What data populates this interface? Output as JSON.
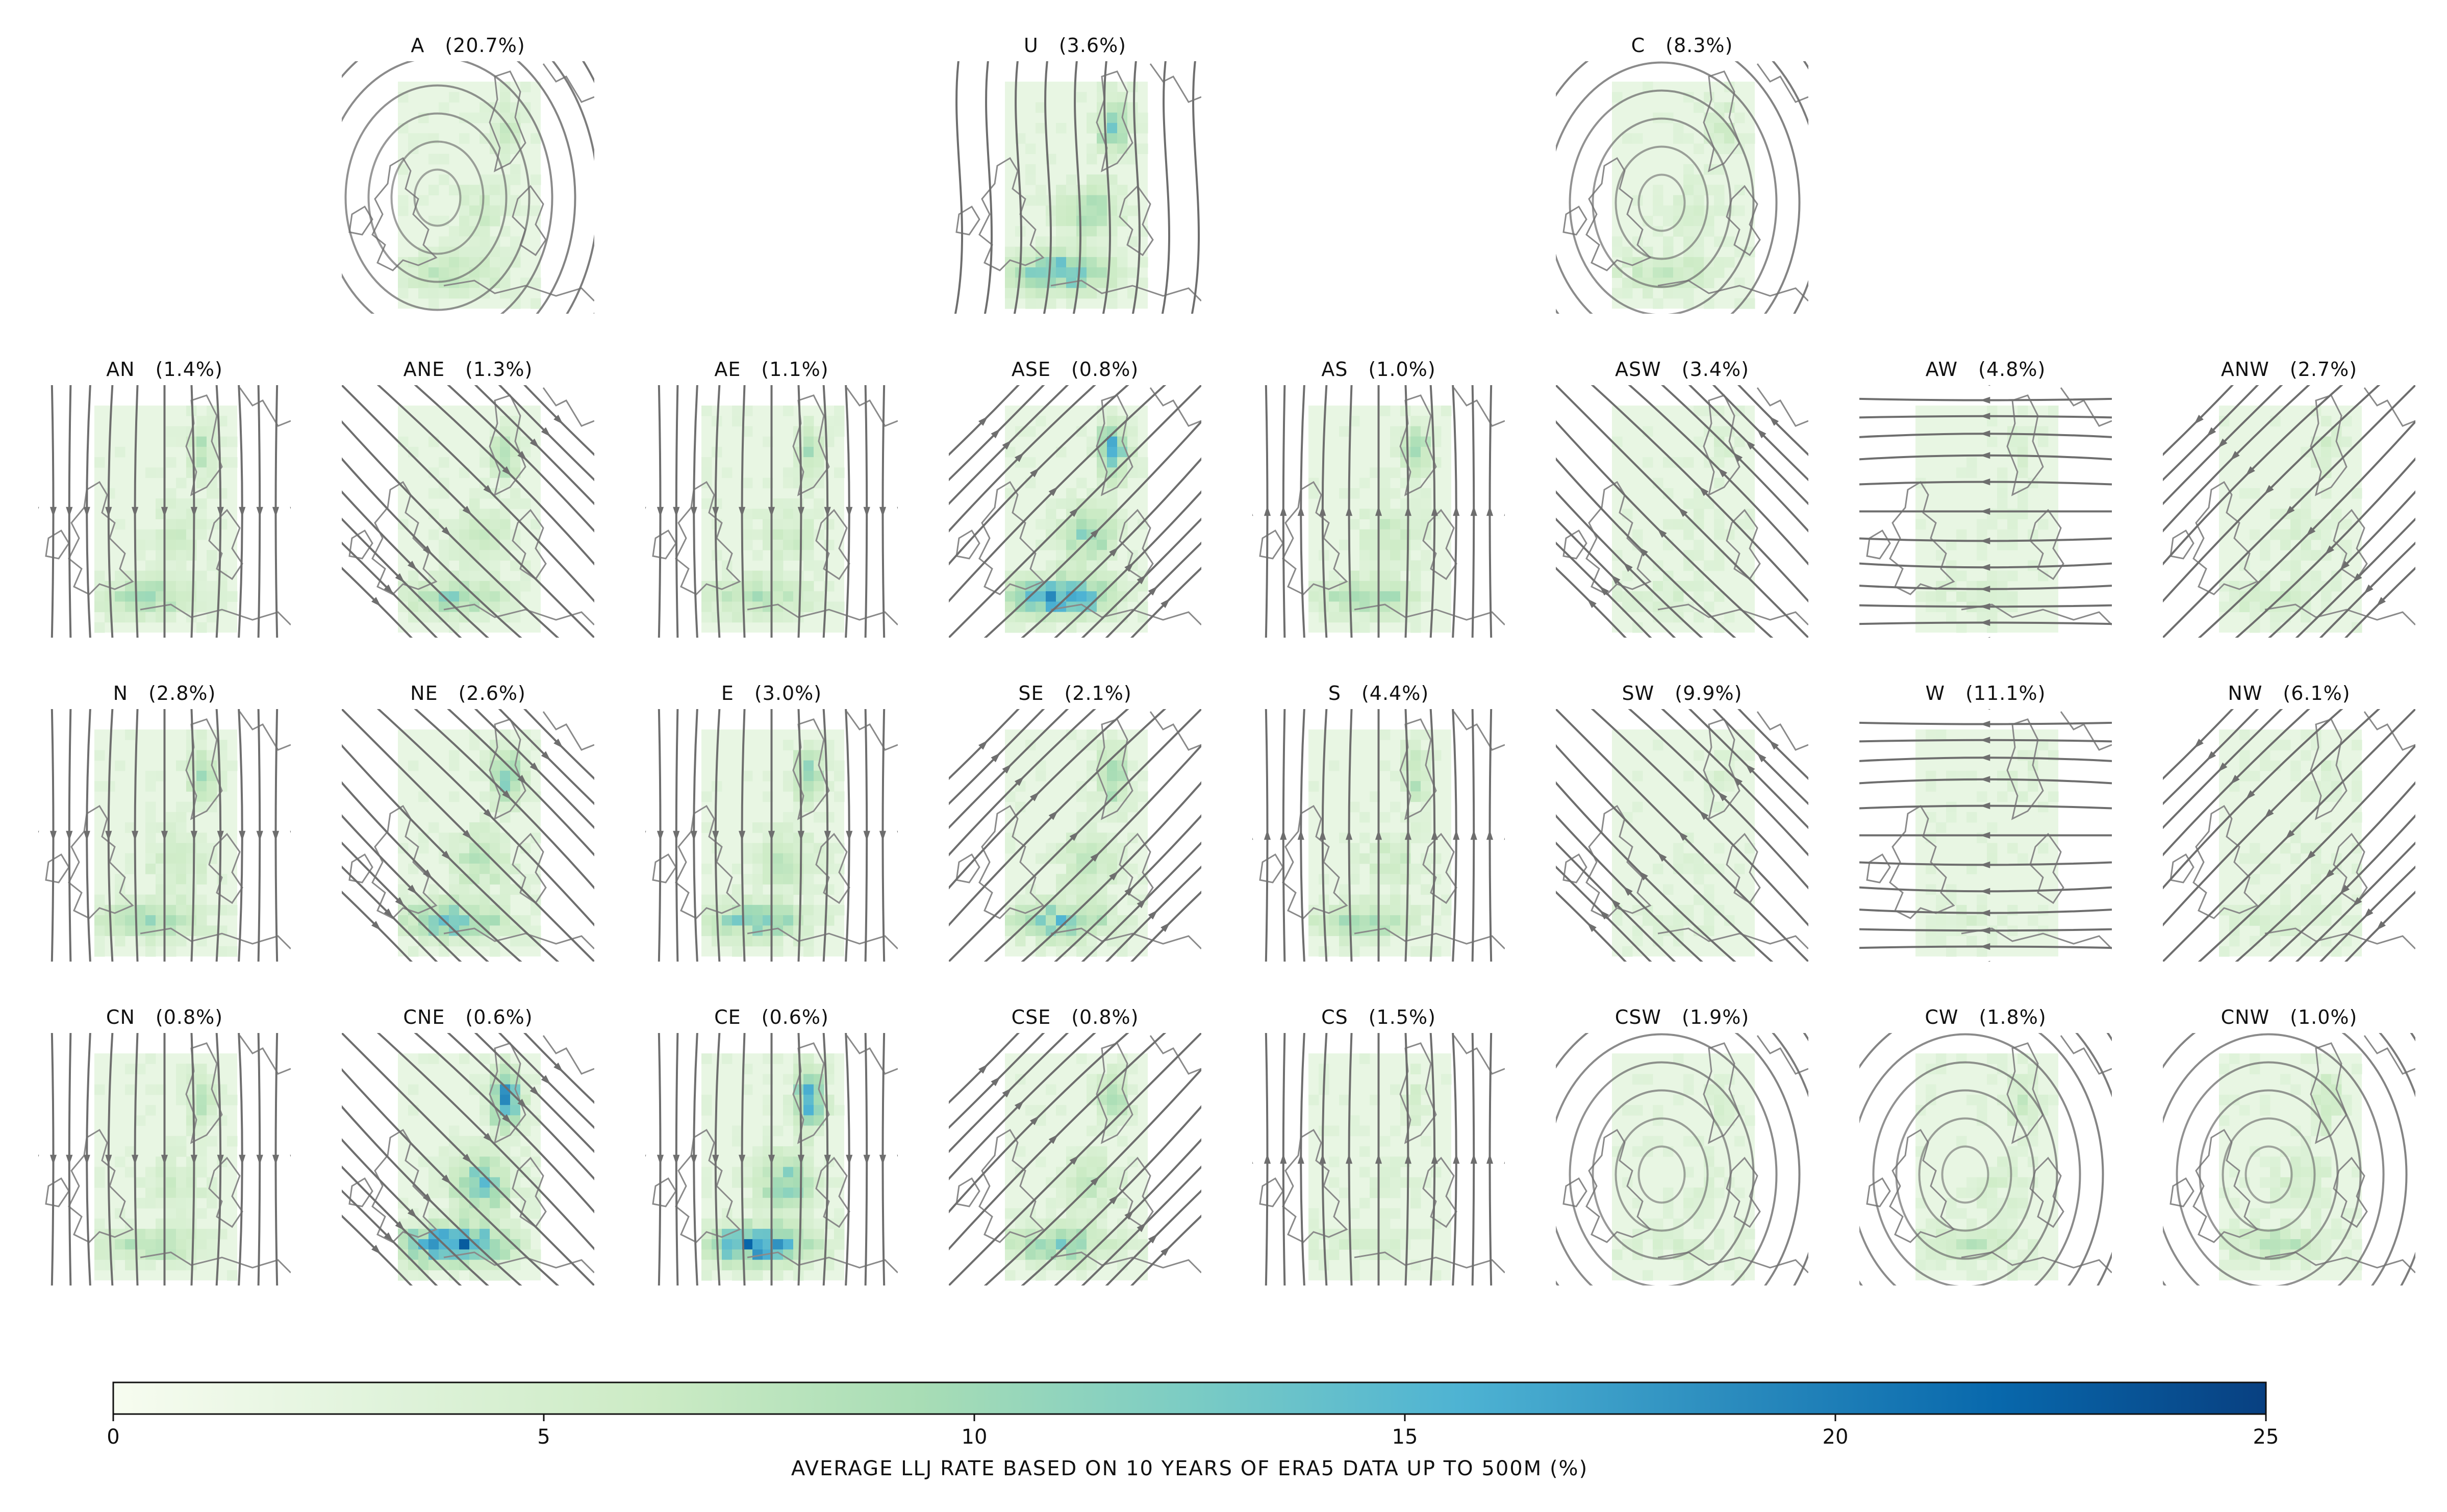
{
  "chart_data": {
    "type": "heatmap",
    "description_value": "weather-type composite maps of low-level jet occurrence",
    "panels": [
      {
        "label": "A",
        "percent": "(20.7%)",
        "row": 0,
        "col": 1,
        "flow": "anticyclone",
        "dir": null,
        "llj": 0.25
      },
      {
        "label": "U",
        "percent": "(3.6%)",
        "row": 0,
        "col": 3,
        "flow": "mixed",
        "dir": null,
        "llj": 0.55
      },
      {
        "label": "C",
        "percent": "(8.3%)",
        "row": 0,
        "col": 5,
        "flow": "cyclone",
        "dir": null,
        "llj": 0.2
      },
      {
        "label": "AN",
        "percent": "(1.4%)",
        "row": 1,
        "col": 0,
        "flow": "directional",
        "dir": "N",
        "llj": 0.3
      },
      {
        "label": "ANE",
        "percent": "(1.3%)",
        "row": 1,
        "col": 1,
        "flow": "directional",
        "dir": "NE",
        "llj": 0.35
      },
      {
        "label": "AE",
        "percent": "(1.1%)",
        "row": 1,
        "col": 2,
        "flow": "directional",
        "dir": "E",
        "llj": 0.3
      },
      {
        "label": "ASE",
        "percent": "(0.8%)",
        "row": 1,
        "col": 3,
        "flow": "directional",
        "dir": "SE",
        "llj": 0.7
      },
      {
        "label": "AS",
        "percent": "(1.0%)",
        "row": 1,
        "col": 4,
        "flow": "directional",
        "dir": "S",
        "llj": 0.35
      },
      {
        "label": "ASW",
        "percent": "(3.4%)",
        "row": 1,
        "col": 5,
        "flow": "directional",
        "dir": "SW",
        "llj": 0.1
      },
      {
        "label": "AW",
        "percent": "(4.8%)",
        "row": 1,
        "col": 6,
        "flow": "directional",
        "dir": "W",
        "llj": 0.1
      },
      {
        "label": "ANW",
        "percent": "(2.7%)",
        "row": 1,
        "col": 7,
        "flow": "directional",
        "dir": "NW",
        "llj": 0.15
      },
      {
        "label": "N",
        "percent": "(2.8%)",
        "row": 2,
        "col": 0,
        "flow": "directional",
        "dir": "N",
        "llj": 0.35
      },
      {
        "label": "NE",
        "percent": "(2.6%)",
        "row": 2,
        "col": 1,
        "flow": "directional",
        "dir": "NE",
        "llj": 0.5
      },
      {
        "label": "E",
        "percent": "(3.0%)",
        "row": 2,
        "col": 2,
        "flow": "directional",
        "dir": "E",
        "llj": 0.45
      },
      {
        "label": "SE",
        "percent": "(2.1%)",
        "row": 2,
        "col": 3,
        "flow": "directional",
        "dir": "SE",
        "llj": 0.45
      },
      {
        "label": "S",
        "percent": "(4.4%)",
        "row": 2,
        "col": 4,
        "flow": "directional",
        "dir": "S",
        "llj": 0.3
      },
      {
        "label": "SW",
        "percent": "(9.9%)",
        "row": 2,
        "col": 5,
        "flow": "directional",
        "dir": "SW",
        "llj": 0.08
      },
      {
        "label": "W",
        "percent": "(11.1%)",
        "row": 2,
        "col": 6,
        "flow": "directional",
        "dir": "W",
        "llj": 0.08
      },
      {
        "label": "NW",
        "percent": "(6.1%)",
        "row": 2,
        "col": 7,
        "flow": "directional",
        "dir": "NW",
        "llj": 0.1
      },
      {
        "label": "CN",
        "percent": "(0.8%)",
        "row": 3,
        "col": 0,
        "flow": "directional",
        "dir": "N",
        "llj": 0.3
      },
      {
        "label": "CNE",
        "percent": "(0.6%)",
        "row": 3,
        "col": 1,
        "flow": "directional",
        "dir": "NE",
        "llj": 0.85
      },
      {
        "label": "CE",
        "percent": "(0.6%)",
        "row": 3,
        "col": 2,
        "flow": "directional",
        "dir": "E",
        "llj": 0.75
      },
      {
        "label": "CSE",
        "percent": "(0.8%)",
        "row": 3,
        "col": 3,
        "flow": "directional",
        "dir": "SE",
        "llj": 0.4
      },
      {
        "label": "CS",
        "percent": "(1.5%)",
        "row": 3,
        "col": 4,
        "flow": "directional",
        "dir": "S",
        "llj": 0.12
      },
      {
        "label": "CSW",
        "percent": "(1.9%)",
        "row": 3,
        "col": 5,
        "flow": "cyclone",
        "dir": null,
        "llj": 0.1
      },
      {
        "label": "CW",
        "percent": "(1.8%)",
        "row": 3,
        "col": 6,
        "flow": "cyclone",
        "dir": null,
        "llj": 0.2
      },
      {
        "label": "CNW",
        "percent": "(1.0%)",
        "row": 3,
        "col": 7,
        "flow": "cyclone",
        "dir": null,
        "llj": 0.25
      }
    ],
    "colorbar": {
      "min": 0,
      "max": 25,
      "ticks": [
        0,
        5,
        10,
        15,
        20,
        25
      ],
      "tick_labels": [
        "0",
        "5",
        "10",
        "15",
        "20",
        "25"
      ],
      "label": "AVERAGE LLJ RATE BASED ON 10 YEARS OF ERA5 DATA UP TO 500M (%)",
      "colormap": "GnBu",
      "stops": [
        "#f7fcf0",
        "#e0f3db",
        "#ccebc5",
        "#a8ddb5",
        "#7bccc4",
        "#4eb3d3",
        "#2b8cbe",
        "#0868ac",
        "#084081"
      ]
    }
  },
  "colors": {
    "stream": "#6e6e6e",
    "coast": "#8a8a8a",
    "title": "#111111"
  }
}
